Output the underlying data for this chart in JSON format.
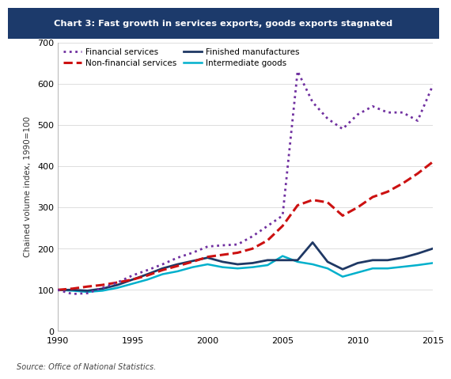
{
  "title": "Chart 3: Fast growth in services exports, goods exports stagnated",
  "title_bg_color": "#1c3a6b",
  "title_text_color": "#ffffff",
  "ylabel": "Chained volume index, 1990=100",
  "source": "Source: Office of National Statistics.",
  "ylim": [
    0,
    700
  ],
  "yticks": [
    0,
    100,
    200,
    300,
    400,
    500,
    600,
    700
  ],
  "xlim": [
    1990,
    2015
  ],
  "xticks": [
    1990,
    1995,
    2000,
    2005,
    2010,
    2015
  ],
  "years": [
    1990,
    1991,
    1992,
    1993,
    1994,
    1995,
    1996,
    1997,
    1998,
    1999,
    2000,
    2001,
    2002,
    2003,
    2004,
    2005,
    2006,
    2007,
    2008,
    2009,
    2010,
    2011,
    2012,
    2013,
    2014,
    2015
  ],
  "financial_services": [
    100,
    90,
    92,
    105,
    118,
    135,
    148,
    162,
    178,
    190,
    205,
    208,
    210,
    230,
    255,
    280,
    630,
    555,
    515,
    490,
    525,
    545,
    530,
    530,
    510,
    595
  ],
  "non_financial_services": [
    100,
    103,
    108,
    112,
    118,
    125,
    135,
    148,
    158,
    168,
    180,
    185,
    190,
    200,
    220,
    255,
    305,
    318,
    312,
    280,
    300,
    325,
    338,
    358,
    382,
    410
  ],
  "finished_manufactures": [
    100,
    100,
    98,
    103,
    112,
    125,
    138,
    152,
    162,
    170,
    178,
    168,
    162,
    165,
    172,
    172,
    172,
    215,
    168,
    150,
    165,
    172,
    172,
    178,
    188,
    200
  ],
  "intermediate_goods": [
    100,
    98,
    95,
    98,
    105,
    115,
    125,
    138,
    145,
    155,
    162,
    155,
    152,
    155,
    160,
    182,
    168,
    162,
    152,
    132,
    142,
    152,
    152,
    156,
    160,
    165
  ],
  "financial_services_color": "#7030a0",
  "non_financial_services_color": "#cc1111",
  "finished_manufactures_color": "#1f3864",
  "intermediate_goods_color": "#00b0cc",
  "background_color": "#ffffff",
  "grid_color": "#d8d8d8",
  "legend_labels": [
    "Financial services",
    "Non-financial services",
    "Finished manufactures",
    "Intermediate goods"
  ]
}
